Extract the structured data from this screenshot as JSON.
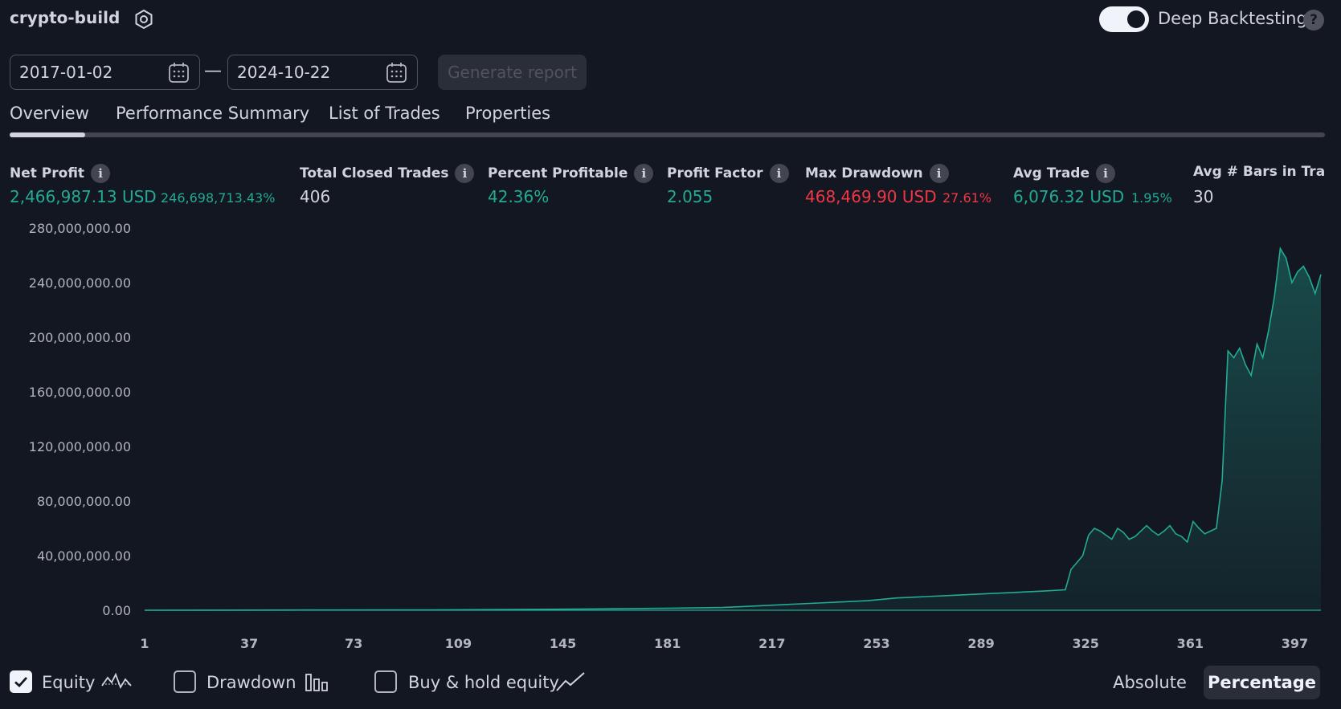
{
  "header": {
    "strategy_name": "crypto-build",
    "deep_backtesting_label": "Deep Backtesting",
    "deep_backtesting_enabled": true,
    "help_glyph": "?"
  },
  "date_range": {
    "start": "2017-01-02",
    "separator": "—",
    "end": "2024-10-22",
    "generate_label": "Generate report"
  },
  "tabs": [
    {
      "label": "Overview",
      "active": true
    },
    {
      "label": "Performance Summary",
      "active": false
    },
    {
      "label": "List of Trades",
      "active": false
    },
    {
      "label": "Properties",
      "active": false
    }
  ],
  "stats": {
    "net_profit": {
      "label": "Net Profit",
      "value": "2,466,987.13 USD",
      "sub": "246,698,713.43%"
    },
    "total_closed_trades": {
      "label": "Total Closed Trades",
      "value": "406"
    },
    "percent_profitable": {
      "label": "Percent Profitable",
      "value": "42.36%"
    },
    "profit_factor": {
      "label": "Profit Factor",
      "value": "2.055"
    },
    "max_drawdown": {
      "label": "Max Drawdown",
      "value": "468,469.90 USD",
      "sub": "27.61%"
    },
    "avg_trade": {
      "label": "Avg Trade",
      "value": "6,076.32 USD",
      "sub": "1.95%"
    },
    "avg_bars": {
      "label": "Avg # Bars in Trades",
      "value": "30"
    }
  },
  "info_glyph": "i",
  "chart_data": {
    "type": "area",
    "series": [
      {
        "name": "Equity",
        "color": "#22ab94"
      }
    ],
    "ylim": [
      0,
      280000000
    ],
    "y_ticks": [
      "0.00",
      "40,000,000.00",
      "80,000,000.00",
      "120,000,000.00",
      "160,000,000.00",
      "200,000,000.00",
      "240,000,000.00",
      "280,000,000.00"
    ],
    "xlim": [
      1,
      406
    ],
    "x_ticks": [
      "1",
      "37",
      "73",
      "109",
      "145",
      "181",
      "217",
      "253",
      "289",
      "325",
      "361",
      "397"
    ],
    "x": [
      1,
      100,
      150,
      180,
      200,
      210,
      220,
      230,
      240,
      250,
      260,
      270,
      280,
      290,
      300,
      310,
      318,
      320,
      322,
      324,
      326,
      328,
      330,
      332,
      334,
      336,
      338,
      340,
      342,
      344,
      346,
      348,
      350,
      352,
      354,
      356,
      358,
      360,
      362,
      364,
      366,
      368,
      370,
      372,
      374,
      376,
      378,
      380,
      382,
      384,
      386,
      388,
      390,
      392,
      394,
      396,
      398,
      400,
      402,
      404,
      406
    ],
    "y": [
      0,
      300000,
      800000,
      1500000,
      2000000,
      3000000,
      4000000,
      5000000,
      6000000,
      7000000,
      9000000,
      10000000,
      11000000,
      12000000,
      13000000,
      14000000,
      15000000,
      30000000,
      35000000,
      40000000,
      55000000,
      60000000,
      58000000,
      55000000,
      52000000,
      60000000,
      57000000,
      52000000,
      54000000,
      58000000,
      62000000,
      58000000,
      55000000,
      58000000,
      62000000,
      56000000,
      54000000,
      50000000,
      65000000,
      60000000,
      56000000,
      58000000,
      60000000,
      95000000,
      190000000,
      185000000,
      192000000,
      180000000,
      172000000,
      195000000,
      185000000,
      205000000,
      230000000,
      265000000,
      258000000,
      240000000,
      248000000,
      252000000,
      244000000,
      232000000,
      246000000
    ]
  },
  "footer": {
    "equity": {
      "label": "Equity",
      "checked": true
    },
    "drawdown": {
      "label": "Drawdown",
      "checked": false
    },
    "buy_hold": {
      "label": "Buy & hold equity",
      "checked": false
    },
    "absolute_label": "Absolute",
    "percentage_label": "Percentage",
    "active_mode": "Percentage"
  }
}
